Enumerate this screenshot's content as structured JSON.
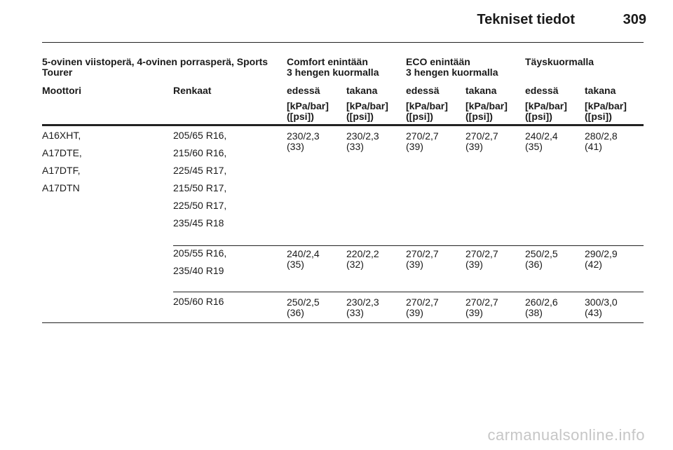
{
  "page": {
    "title": "Tekniset tiedot",
    "number": "309"
  },
  "table": {
    "group_header": {
      "vehicle": "5-ovinen viistoperä, 4-ovinen porrasperä, Sports Tourer",
      "comfort": [
        "Comfort enintään",
        "3 hengen kuormalla"
      ],
      "eco": [
        "ECO enintään",
        "3 hengen kuormalla"
      ],
      "full": "Täyskuormalla"
    },
    "columns": [
      "Moottori",
      "Renkaat",
      "edessä",
      "takana",
      "edessä",
      "takana",
      "edessä",
      "takana"
    ],
    "unit": [
      "[kPa/bar]",
      "([psi])"
    ],
    "engines": [
      "A16XHT,",
      "A17DTE,",
      "A17DTF,",
      "A17DTN"
    ],
    "rows": [
      {
        "tyres": [
          "205/65 R16,",
          "215/60 R16,",
          "225/45 R17,",
          "215/50 R17,",
          "225/50 R17,",
          "235/45 R18"
        ],
        "values": [
          [
            "230/2,3",
            "(33)"
          ],
          [
            "230/2,3",
            "(33)"
          ],
          [
            "270/2,7",
            "(39)"
          ],
          [
            "270/2,7",
            "(39)"
          ],
          [
            "240/2,4",
            "(35)"
          ],
          [
            "280/2,8",
            "(41)"
          ]
        ]
      },
      {
        "tyres": [
          "205/55 R16,",
          "235/40 R19"
        ],
        "values": [
          [
            "240/2,4",
            "(35)"
          ],
          [
            "220/2,2",
            "(32)"
          ],
          [
            "270/2,7",
            "(39)"
          ],
          [
            "270/2,7",
            "(39)"
          ],
          [
            "250/2,5",
            "(36)"
          ],
          [
            "290/2,9",
            "(42)"
          ]
        ]
      },
      {
        "tyres": [
          "205/60 R16"
        ],
        "values": [
          [
            "250/2,5",
            "(36)"
          ],
          [
            "230/2,3",
            "(33)"
          ],
          [
            "270/2,7",
            "(39)"
          ],
          [
            "270/2,7",
            "(39)"
          ],
          [
            "260/2,6",
            "(38)"
          ],
          [
            "300/3,0",
            "(43)"
          ]
        ]
      }
    ]
  },
  "watermark": "carmanualsonline.info"
}
